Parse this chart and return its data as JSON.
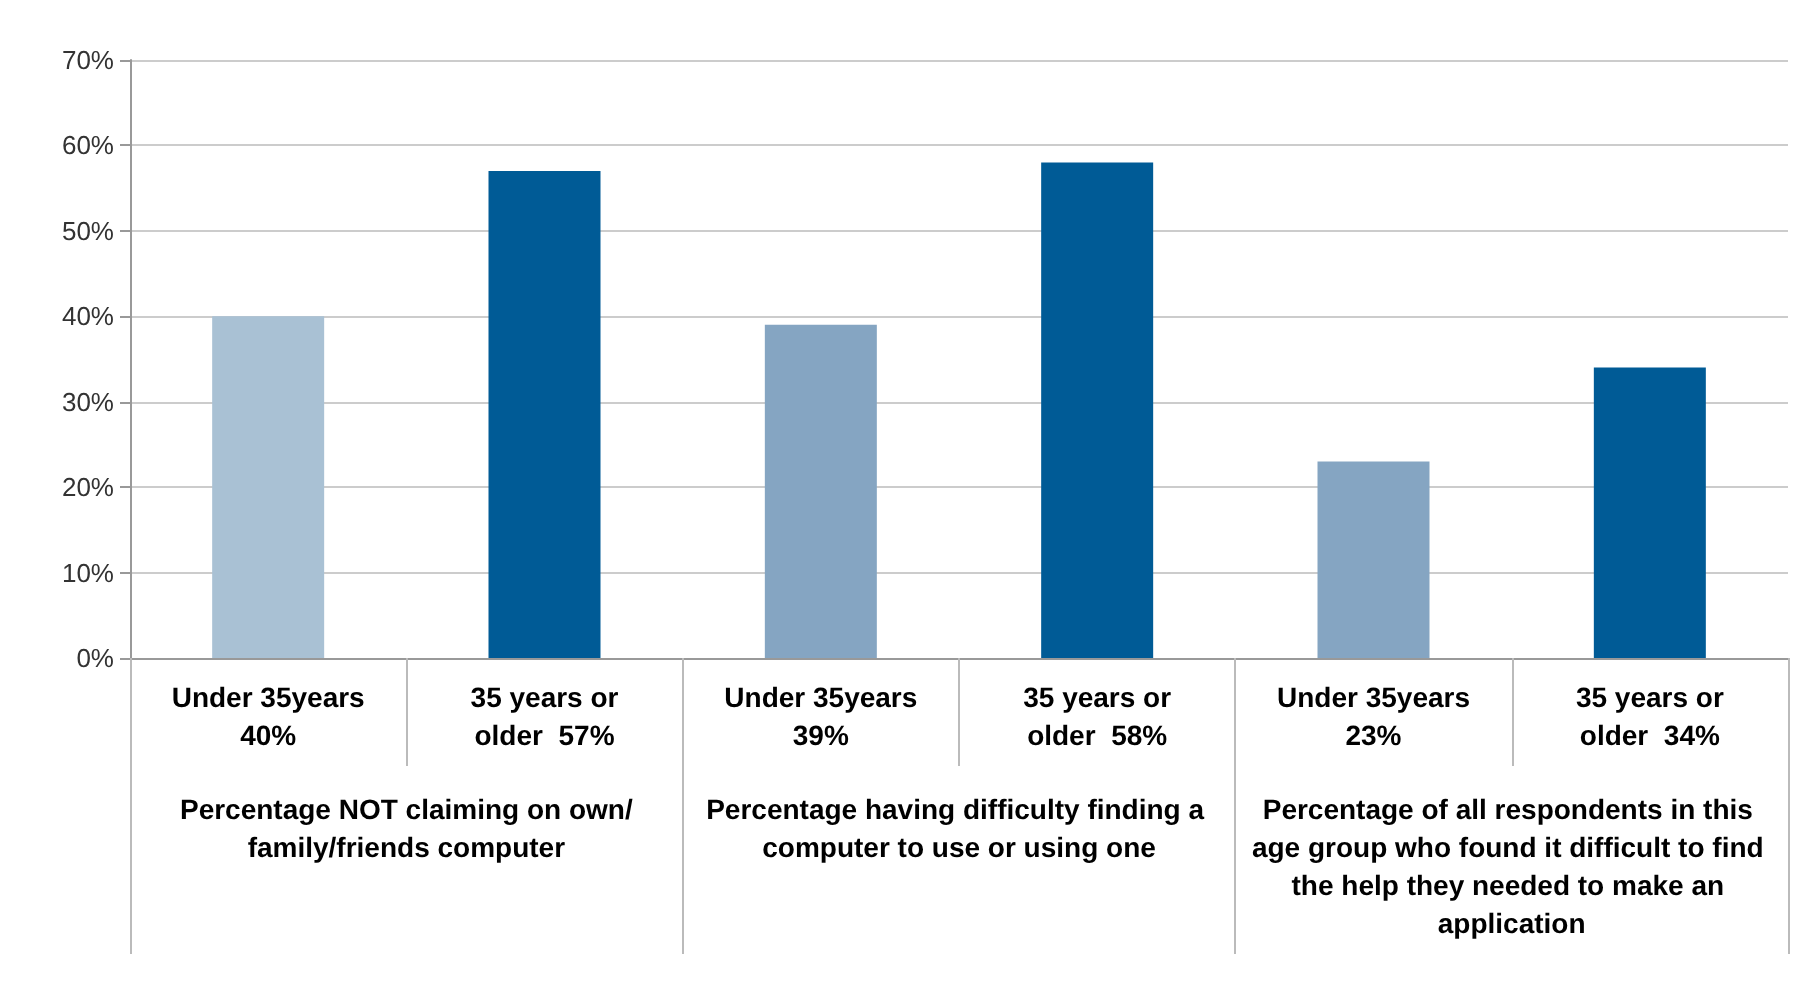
{
  "chart_data": {
    "type": "bar",
    "categories": [
      "Under 35years\n40%",
      "35 years or\nolder  57%",
      "Under 35years\n39%",
      "35 years or\nolder  58%",
      "Under 35years\n23%",
      "35 years or\nolder  34%"
    ],
    "values": [
      40,
      57,
      39,
      58,
      23,
      34
    ],
    "colors": [
      "#a9c1d4",
      "#005b96",
      "#85a5c2",
      "#005b96",
      "#85a5c2",
      "#005b96"
    ],
    "ylim": [
      0,
      70
    ],
    "yticks": [
      {
        "value": 0,
        "label": "0%"
      },
      {
        "value": 10,
        "label": "10%"
      },
      {
        "value": 20,
        "label": "20%"
      },
      {
        "value": 30,
        "label": "30%"
      },
      {
        "value": 40,
        "label": "40%"
      },
      {
        "value": 50,
        "label": "50%"
      },
      {
        "value": 60,
        "label": "60%"
      },
      {
        "value": 70,
        "label": "70%"
      }
    ],
    "annotations": [
      "Percentage NOT claiming on own/family/friends computer",
      "Percentage having difficulty finding a computer to use or using one",
      "Percentage of all respondents in this age group who found it difficult to find the help they needed to make an application"
    ],
    "grid": "y"
  }
}
